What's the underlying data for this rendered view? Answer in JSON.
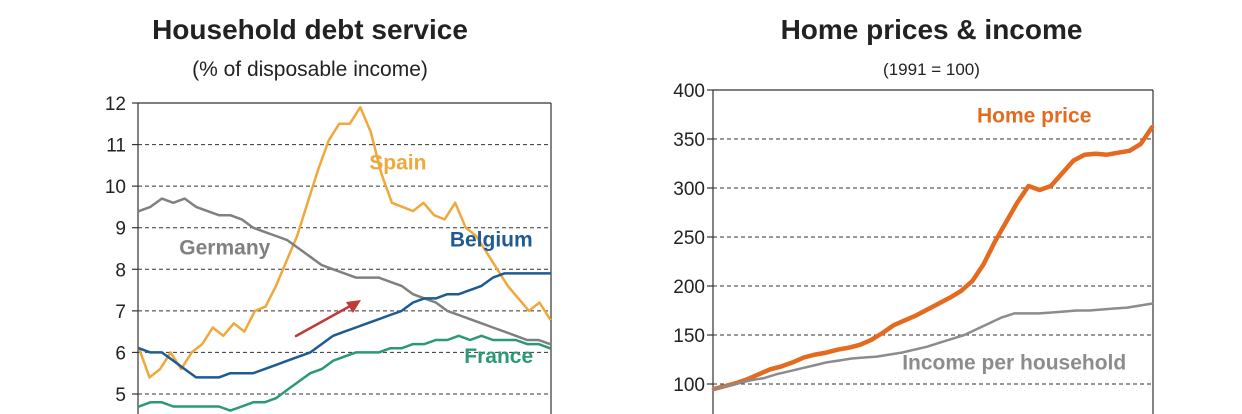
{
  "colors": {
    "spain": "#f0a83c",
    "germany": "#808080",
    "belgium": "#1f5b93",
    "france": "#2a9a73",
    "home_price": "#e36a1f",
    "income": "#8c8c8c",
    "arrow": "#c0393b",
    "grid": "#333333"
  },
  "chart_data": [
    {
      "type": "line",
      "title": "Household debt service",
      "subtitle": "(% of disposable income)",
      "xlabel": "",
      "ylabel": "",
      "ylim": [
        5,
        12
      ],
      "yticks": [
        5,
        6,
        7,
        8,
        9,
        10,
        11,
        12
      ],
      "grid": "dashed-horizontal",
      "annotation": "arrow pointing up-right",
      "series": [
        {
          "name": "Spain",
          "key": "spain",
          "label_pos": [
            0.56,
            10.4
          ],
          "values": [
            6.1,
            5.4,
            5.6,
            6.0,
            5.6,
            6.0,
            6.2,
            6.6,
            6.4,
            6.7,
            6.5,
            7.0,
            7.1,
            7.6,
            8.2,
            8.8,
            9.6,
            10.4,
            11.1,
            11.5,
            11.5,
            11.9,
            11.3,
            10.3,
            9.6,
            9.5,
            9.4,
            9.6,
            9.3,
            9.2,
            9.6,
            9.0,
            8.8,
            8.4,
            8.0,
            7.6,
            7.3,
            7.0,
            7.2,
            6.8
          ]
        },
        {
          "name": "Germany",
          "key": "germany",
          "label_pos": [
            0.1,
            8.35
          ],
          "values": [
            9.4,
            9.5,
            9.7,
            9.6,
            9.7,
            9.5,
            9.4,
            9.3,
            9.3,
            9.2,
            9.0,
            8.9,
            8.8,
            8.7,
            8.5,
            8.3,
            8.1,
            8.0,
            7.9,
            7.8,
            7.8,
            7.8,
            7.7,
            7.6,
            7.4,
            7.3,
            7.2,
            7.0,
            6.9,
            6.8,
            6.7,
            6.6,
            6.5,
            6.4,
            6.3,
            6.3,
            6.2
          ]
        },
        {
          "name": "Belgium",
          "key": "belgium",
          "label_pos": [
            0.755,
            8.55
          ],
          "values": [
            6.1,
            6.0,
            6.0,
            5.8,
            5.6,
            5.4,
            5.4,
            5.4,
            5.5,
            5.5,
            5.5,
            5.6,
            5.7,
            5.8,
            5.9,
            6.0,
            6.2,
            6.4,
            6.5,
            6.6,
            6.7,
            6.8,
            6.9,
            7.0,
            7.2,
            7.3,
            7.3,
            7.4,
            7.4,
            7.5,
            7.6,
            7.8,
            7.9,
            7.9,
            7.9,
            7.9,
            7.9
          ]
        },
        {
          "name": "France",
          "key": "france",
          "label_pos": [
            0.79,
            5.75
          ],
          "values": [
            4.7,
            4.8,
            4.8,
            4.7,
            4.7,
            4.7,
            4.7,
            4.7,
            4.6,
            4.7,
            4.8,
            4.8,
            4.9,
            5.1,
            5.3,
            5.5,
            5.6,
            5.8,
            5.9,
            6.0,
            6.0,
            6.0,
            6.1,
            6.1,
            6.2,
            6.2,
            6.3,
            6.3,
            6.4,
            6.3,
            6.4,
            6.3,
            6.3,
            6.3,
            6.2,
            6.2,
            6.1
          ]
        }
      ]
    },
    {
      "type": "line",
      "title": "Home prices & income",
      "subtitle": "(1991 = 100)",
      "xlabel": "",
      "ylabel": "",
      "ylim": [
        100,
        400
      ],
      "yticks": [
        100,
        150,
        200,
        250,
        300,
        350,
        400
      ],
      "grid": "dashed-horizontal",
      "series": [
        {
          "name": "Home price",
          "key": "home_price",
          "label_pos": [
            0.6,
            367
          ],
          "values": [
            95,
            98,
            101,
            105,
            110,
            115,
            118,
            122,
            127,
            130,
            132,
            135,
            137,
            140,
            145,
            152,
            160,
            165,
            170,
            176,
            182,
            188,
            195,
            205,
            222,
            245,
            265,
            285,
            302,
            298,
            302,
            315,
            328,
            334,
            335,
            334,
            336,
            338,
            345,
            362
          ]
        },
        {
          "name": "Income per household",
          "key": "income",
          "label_pos": [
            0.43,
            115
          ],
          "values": [
            95,
            98,
            101,
            104,
            106,
            110,
            113,
            116,
            119,
            122,
            124,
            126,
            127,
            128,
            130,
            132,
            135,
            138,
            142,
            146,
            150,
            156,
            162,
            168,
            172,
            172,
            172,
            173,
            174,
            175,
            175,
            176,
            177,
            178,
            180,
            182
          ]
        }
      ]
    }
  ]
}
